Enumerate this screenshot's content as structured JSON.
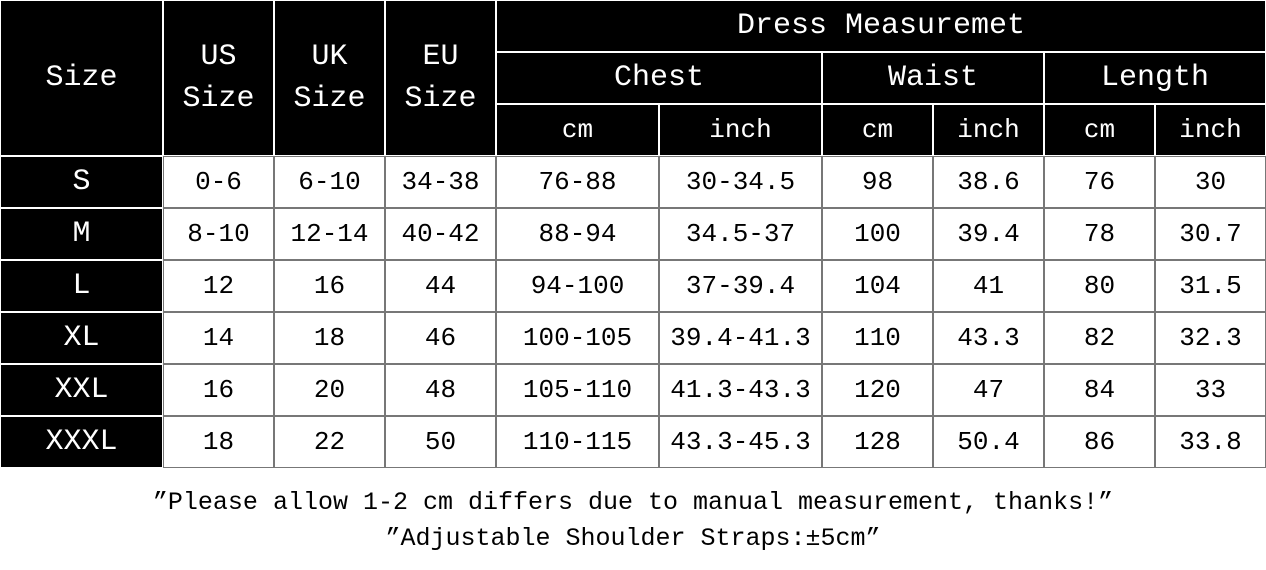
{
  "table": {
    "title": "Dress Measuremet",
    "headers": {
      "size": "Size",
      "us": "US Size",
      "uk": "UK Size",
      "eu": "EU Size",
      "groups": [
        "Chest",
        "Waist",
        "Length"
      ],
      "units": [
        "cm",
        "inch",
        "cm",
        "inch",
        "cm",
        "inch"
      ]
    },
    "rows": [
      [
        "S",
        "0-6",
        "6-10",
        "34-38",
        "76-88",
        "30-34.5",
        "98",
        "38.6",
        "76",
        "30"
      ],
      [
        "M",
        "8-10",
        "12-14",
        "40-42",
        "88-94",
        "34.5-37",
        "100",
        "39.4",
        "78",
        "30.7"
      ],
      [
        "L",
        "12",
        "16",
        "44",
        "94-100",
        "37-39.4",
        "104",
        "41",
        "80",
        "31.5"
      ],
      [
        "XL",
        "14",
        "18",
        "46",
        "100-105",
        "39.4-41.3",
        "110",
        "43.3",
        "82",
        "32.3"
      ],
      [
        "XXL",
        "16",
        "20",
        "48",
        "105-110",
        "41.3-43.3",
        "120",
        "47",
        "84",
        "33"
      ],
      [
        "XXXL",
        "18",
        "22",
        "50",
        "110-115",
        "43.3-45.3",
        "128",
        "50.4",
        "86",
        "33.8"
      ]
    ]
  },
  "notes": [
    "”Please allow 1-2 cm differs due to manual measurement, thanks!”",
    "”Adjustable Shoulder Straps:±5cm”"
  ]
}
